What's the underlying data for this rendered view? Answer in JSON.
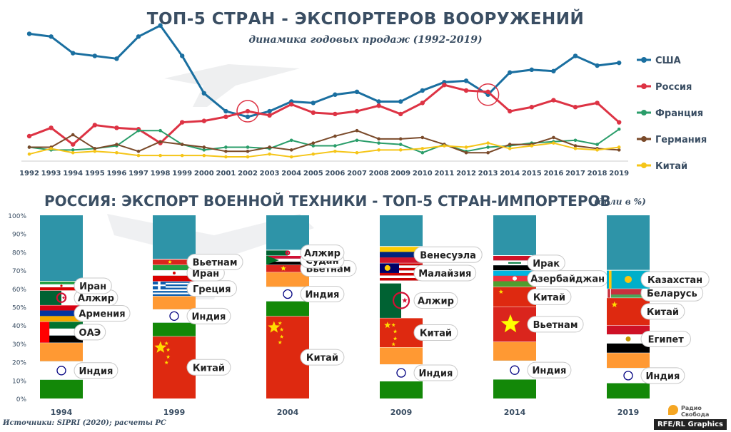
{
  "title": "ТОП-5 СТРАН - ЭКСПОРТЕРОВ ВООРУЖЕНИЙ",
  "subtitle": "динамика годовых продаж (1992-2019)",
  "section2_title": "РОССИЯ: ЭКСПОРТ ВОЕННОЙ ТЕХНИКИ - ТОП-5 СТРАН-ИМПОРТЕРОВ",
  "section2_unit": "(доли в %)",
  "source": "Источники: SIPRI (2020); расчеты РС",
  "credit": "RFE/RL Graphics",
  "logo_text": [
    "Радио",
    "Свобода"
  ],
  "chart_data": [
    {
      "type": "line",
      "title": "ТОП-5 СТРАН - ЭКСПОРТЕРОВ ВООРУЖЕНИЙ",
      "subtitle": "динамика годовых продаж (1992-2019)",
      "x": [
        1992,
        1993,
        1994,
        1995,
        1996,
        1997,
        1998,
        1999,
        2000,
        2001,
        2002,
        2003,
        2004,
        2005,
        2006,
        2007,
        2008,
        2009,
        2010,
        2011,
        2012,
        2013,
        2014,
        2015,
        2016,
        2017,
        2018,
        2019
      ],
      "ylim": [
        0,
        100
      ],
      "legend": "right",
      "series": [
        {
          "name": "США",
          "color": "#1a6fa0",
          "values": [
            90,
            88,
            76,
            74,
            72,
            88,
            96,
            74,
            47,
            34,
            30,
            34,
            41,
            40,
            46,
            48,
            41,
            41,
            49,
            55,
            56,
            46,
            62,
            64,
            63,
            74,
            67,
            69
          ]
        },
        {
          "name": "Россия",
          "color": "#dd3344",
          "values": [
            16,
            22,
            10,
            24,
            22,
            21,
            11,
            26,
            27,
            30,
            34,
            31,
            39,
            33,
            32,
            34,
            38,
            32,
            40,
            53,
            49,
            48,
            34,
            37,
            42,
            37,
            40,
            26
          ]
        },
        {
          "name": "Франция",
          "color": "#2a9d6a",
          "values": [
            8,
            6,
            6,
            7,
            9,
            20,
            20,
            10,
            6,
            8,
            8,
            7,
            13,
            9,
            9,
            13,
            11,
            10,
            4,
            10,
            5,
            8,
            9,
            11,
            12,
            13,
            10,
            21
          ]
        },
        {
          "name": "Германия",
          "color": "#7a4a2a",
          "values": [
            8,
            8,
            17,
            7,
            10,
            5,
            12,
            10,
            8,
            5,
            5,
            8,
            6,
            11,
            16,
            20,
            14,
            14,
            15,
            10,
            4,
            4,
            10,
            10,
            15,
            9,
            7,
            6
          ]
        },
        {
          "name": "Китай",
          "color": "#f5c518",
          "values": [
            3,
            7,
            4,
            5,
            4,
            2,
            2,
            2,
            2,
            1,
            1,
            3,
            1,
            3,
            5,
            4,
            6,
            6,
            7,
            9,
            8,
            11,
            7,
            9,
            11,
            7,
            6,
            8
          ]
        }
      ],
      "highlighted_points": [
        {
          "x": 2002,
          "series": "Россия"
        },
        {
          "x": 2013,
          "series": "США"
        }
      ]
    },
    {
      "type": "bar",
      "stacked": true,
      "title": "РОССИЯ: ЭКСПОРТ ВОЕННОЙ ТЕХНИКИ - ТОП-5 СТРАН-ИМПОРТЕРОВ",
      "unit": "(доли в %)",
      "categories": [
        "1994",
        "1999",
        "2004",
        "2009",
        "2014",
        "2019"
      ],
      "ylim": [
        0,
        100
      ],
      "yticks": [
        "0%",
        "10%",
        "20%",
        "30%",
        "40%",
        "50%",
        "60%",
        "70%",
        "80%",
        "90%",
        "100%"
      ],
      "other_color": "#2e94a8",
      "stacks": [
        {
          "year": "1994",
          "segments": [
            {
              "name": "Индия",
              "value": 30.5,
              "flag": "india"
            },
            {
              "name": "ОАЭ",
              "value": 11.5,
              "flag": "uae"
            },
            {
              "name": "Армения",
              "value": 9,
              "flag": "armenia"
            },
            {
              "name": "Алжир",
              "value": 8,
              "flag": "algeria"
            },
            {
              "name": "Иран",
              "value": 5,
              "flag": "iran"
            }
          ]
        },
        {
          "year": "1999",
          "segments": [
            {
              "name": "Китай",
              "value": 34,
              "flag": "china"
            },
            {
              "name": "Индия",
              "value": 22,
              "flag": "india"
            },
            {
              "name": "Греция",
              "value": 8,
              "flag": "greece"
            },
            {
              "name": "Иран",
              "value": 9,
              "flag": "iran"
            },
            {
              "name": "Вьетнам",
              "value": 3,
              "flag": "vietnam"
            }
          ]
        },
        {
          "year": "2004",
          "segments": [
            {
              "name": "Китай",
              "value": 45,
              "flag": "china"
            },
            {
              "name": "Индия",
              "value": 24,
              "flag": "india"
            },
            {
              "name": "Вьетнам",
              "value": 4,
              "flag": "vietnam"
            },
            {
              "name": "Судан",
              "value": 5,
              "flag": "sudan"
            },
            {
              "name": "Алжир",
              "value": 3,
              "flag": "algeria"
            }
          ]
        },
        {
          "year": "2009",
          "segments": [
            {
              "name": "Индия",
              "value": 28,
              "flag": "india"
            },
            {
              "name": "Китай",
              "value": 16,
              "flag": "china"
            },
            {
              "name": "Алжир",
              "value": 19,
              "flag": "algeria"
            },
            {
              "name": "Малайзия",
              "value": 11,
              "flag": "malaysia"
            },
            {
              "name": "Венесуэла",
              "value": 9,
              "flag": "venezuela"
            }
          ]
        },
        {
          "year": "2014",
          "segments": [
            {
              "name": "Индия",
              "value": 31,
              "flag": "india"
            },
            {
              "name": "Вьетнам",
              "value": 19,
              "flag": "vietnam"
            },
            {
              "name": "Китай",
              "value": 11,
              "flag": "china"
            },
            {
              "name": "Азербайджан",
              "value": 9,
              "flag": "azerbaijan"
            },
            {
              "name": "Ирак",
              "value": 8,
              "flag": "iraq"
            }
          ]
        },
        {
          "year": "2019",
          "segments": [
            {
              "name": "Индия",
              "value": 25,
              "flag": "india"
            },
            {
              "name": "Египет",
              "value": 15,
              "flag": "egypt"
            },
            {
              "name": "Китай",
              "value": 15,
              "flag": "china"
            },
            {
              "name": "Беларусь",
              "value": 5,
              "flag": "belarus"
            },
            {
              "name": "Казахстан",
              "value": 10,
              "flag": "kazakhstan"
            }
          ]
        }
      ]
    }
  ]
}
